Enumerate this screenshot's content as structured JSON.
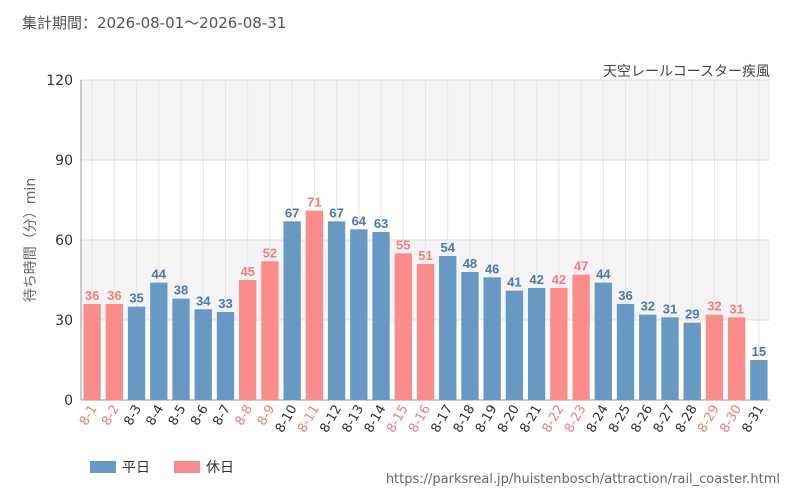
{
  "header": {
    "period": "集計期間：2026-08-01～2026-08-31"
  },
  "legend": {
    "weekday": "平日",
    "holiday": "休日"
  },
  "source": "https://parksreal.jp/huistenbosch/attraction/rail_coaster.html",
  "colors": {
    "weekday": "#6899c4",
    "holiday": "#fc8c8c",
    "weekday_text": "#4a7aab",
    "holiday_text": "#f57c7c"
  },
  "chart_data": {
    "type": "bar",
    "title": "天空レールコースター疾風",
    "ylabel": "待ち時間（分）min",
    "xlabel": "",
    "ylim": [
      0,
      120
    ],
    "yticks": [
      0,
      30,
      60,
      90,
      120
    ],
    "grid": true,
    "legend_position": "bottom-left",
    "categories": [
      "8-1",
      "8-2",
      "8-3",
      "8-4",
      "8-5",
      "8-6",
      "8-7",
      "8-8",
      "8-9",
      "8-10",
      "8-11",
      "8-12",
      "8-13",
      "8-14",
      "8-15",
      "8-16",
      "8-17",
      "8-18",
      "8-19",
      "8-20",
      "8-21",
      "8-22",
      "8-23",
      "8-24",
      "8-25",
      "8-26",
      "8-27",
      "8-28",
      "8-29",
      "8-30",
      "8-31"
    ],
    "values": [
      36,
      36,
      35,
      44,
      38,
      34,
      33,
      45,
      52,
      67,
      71,
      67,
      64,
      63,
      55,
      51,
      54,
      48,
      46,
      41,
      42,
      42,
      47,
      44,
      36,
      32,
      31,
      29,
      32,
      31,
      15
    ],
    "day_type": [
      "holiday",
      "holiday",
      "weekday",
      "weekday",
      "weekday",
      "weekday",
      "weekday",
      "holiday",
      "holiday",
      "weekday",
      "holiday",
      "weekday",
      "weekday",
      "weekday",
      "holiday",
      "holiday",
      "weekday",
      "weekday",
      "weekday",
      "weekday",
      "weekday",
      "holiday",
      "holiday",
      "weekday",
      "weekday",
      "weekday",
      "weekday",
      "weekday",
      "holiday",
      "holiday",
      "weekday"
    ]
  }
}
